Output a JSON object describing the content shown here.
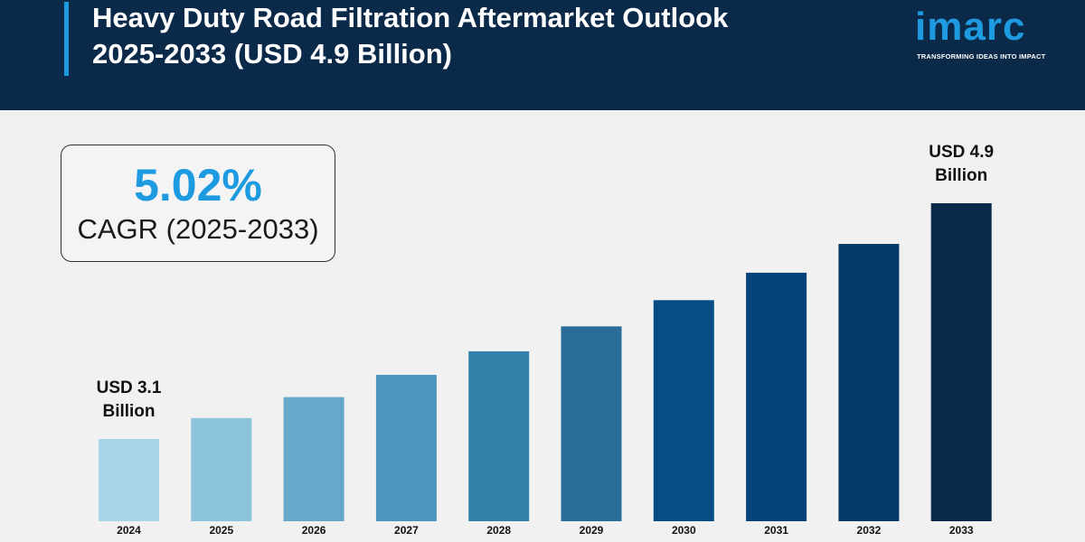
{
  "header": {
    "title_line1": "Heavy Duty Road Filtration Aftermarket Outlook",
    "title_line2": "2025-2033 (USD 4.9 Billion)",
    "logo_text": "imarc",
    "logo_tagline": "TRANSFORMING IDEAS INTO IMPACT"
  },
  "cagr": {
    "value": "5.02%",
    "label": "CAGR (2025-2033)"
  },
  "colors": {
    "header_bg": "#0b2a4a",
    "accent": "#1e9be0",
    "background": "#f1f1f1"
  },
  "chart_data": {
    "type": "bar",
    "categories": [
      "2024",
      "2025",
      "2026",
      "2027",
      "2028",
      "2029",
      "2030",
      "2031",
      "2032",
      "2033"
    ],
    "values": [
      3.1,
      3.26,
      3.42,
      3.59,
      3.77,
      3.96,
      4.16,
      4.37,
      4.59,
      4.9
    ],
    "bar_colors": [
      "#a9d5e8",
      "#8bc3dc",
      "#65a8c9",
      "#4a96bd",
      "#3282ab",
      "#2a6d98",
      "#064d85",
      "#05447a",
      "#053b69",
      "#08294a"
    ],
    "annotations": [
      {
        "category": "2024",
        "line1": "USD 3.1",
        "line2": "Billion"
      },
      {
        "category": "2033",
        "line1": "USD 4.9",
        "line2": "Billion"
      }
    ],
    "title": "",
    "xlabel": "",
    "ylabel": "",
    "grid": false
  }
}
